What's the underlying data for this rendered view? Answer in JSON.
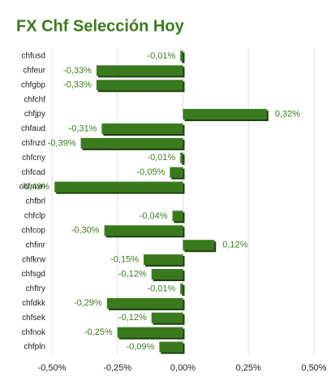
{
  "chart_data": {
    "type": "bar",
    "orientation": "horizontal",
    "title": "FX Chf Selección Hoy",
    "categories": [
      "chfusd",
      "chfeur",
      "chfgbp",
      "chfchf",
      "chfjpy",
      "chfaud",
      "chfnzd",
      "chfcny",
      "chfcad",
      "chfmxn",
      "chfbrl",
      "chfclp",
      "chfcop",
      "chfinr",
      "chfkrw",
      "chfsgd",
      "chftry",
      "chfdkk",
      "chfsek",
      "chfnok",
      "chfpln"
    ],
    "values": [
      -0.01,
      -0.33,
      -0.33,
      null,
      0.32,
      -0.31,
      -0.39,
      -0.01,
      -0.05,
      -0.49,
      null,
      -0.04,
      -0.3,
      0.12,
      -0.15,
      -0.12,
      -0.01,
      -0.29,
      -0.12,
      -0.25,
      -0.09
    ],
    "value_labels": [
      "-0,01%",
      "-0,33%",
      "-0,33%",
      null,
      "0,32%",
      "-0,31%",
      "-0,39%",
      "-0,01%",
      "-0,05%",
      "-0,49%",
      null,
      "-0,04%",
      "-0,30%",
      "0,12%",
      "-0,15%",
      "-0,12%",
      "-0,01%",
      "-0,29%",
      "-0,12%",
      "-0,25%",
      "-0,09%"
    ],
    "color": "#3a7a1f",
    "xlim": [
      -0.5,
      0.5
    ],
    "xticks": [
      {
        "value": -0.5,
        "label": "-0,50%"
      },
      {
        "value": -0.25,
        "label": "-0,25%"
      },
      {
        "value": 0,
        "label": "0,00%"
      },
      {
        "value": 0.25,
        "label": "0,25%"
      },
      {
        "value": 0.5,
        "label": "0,50%"
      }
    ],
    "grid": true
  }
}
